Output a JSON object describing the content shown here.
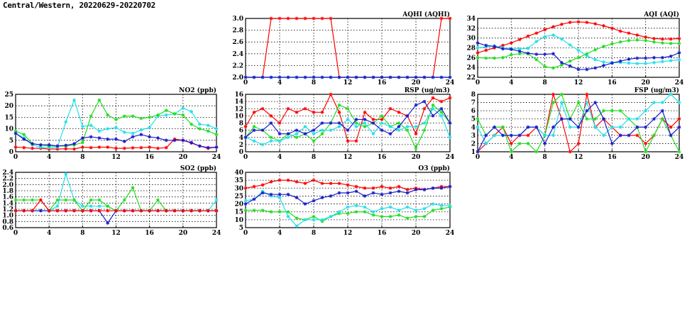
{
  "page": {
    "title": "Central/Western, 20220629-20220702"
  },
  "colors": {
    "red": "#ff0000",
    "green": "#22dd22",
    "blue": "#1a1acc",
    "cyan": "#22e0e8"
  },
  "chart_data": [
    {
      "id": "aqhi",
      "type": "line",
      "title": "AQHI (AQHI)",
      "xlim": [
        0,
        24
      ],
      "xticks": [
        0,
        4,
        8,
        12,
        16,
        20,
        24
      ],
      "ylim": [
        2.0,
        3.0
      ],
      "yticks": [
        "2.0",
        "2.2",
        "2.4",
        "2.6",
        "2.8",
        "3.0"
      ],
      "grid": true,
      "series": [
        {
          "color": "red",
          "values": [
            2,
            2,
            2,
            3,
            3,
            3,
            3,
            3,
            3,
            3,
            3,
            2,
            2,
            2,
            2,
            2,
            2,
            2,
            2,
            2,
            2,
            2,
            2,
            3,
            3
          ]
        },
        {
          "color": "cyan",
          "values": [
            2,
            2,
            2,
            2,
            2,
            2,
            2,
            2,
            2,
            2,
            2,
            2,
            2,
            2,
            2,
            2,
            2,
            2,
            2,
            2,
            2,
            2,
            2,
            2,
            2
          ]
        },
        {
          "color": "blue",
          "values": [
            2,
            2,
            2,
            2,
            2,
            2,
            2,
            2,
            2,
            2,
            2,
            2,
            2,
            2,
            2,
            2,
            2,
            2,
            2,
            2,
            2,
            2,
            2,
            2,
            2
          ]
        }
      ]
    },
    {
      "id": "aqi",
      "type": "line",
      "title": "AQI (AQI)",
      "xlim": [
        0,
        24
      ],
      "xticks": [
        0,
        4,
        8,
        12,
        16,
        20,
        24
      ],
      "ylim": [
        22,
        34
      ],
      "yticks": [
        "22",
        "24",
        "26",
        "28",
        "30",
        "32",
        "34"
      ],
      "grid": true,
      "series": [
        {
          "color": "red",
          "values": [
            27,
            27.5,
            28,
            28.5,
            29,
            29.7,
            30.4,
            31,
            31.7,
            32.3,
            32.8,
            33.2,
            33.3,
            33.2,
            32.9,
            32.5,
            32,
            31.4,
            31,
            30.6,
            30.2,
            29.9,
            29.8,
            29.8,
            29.9
          ]
        },
        {
          "color": "cyan",
          "values": [
            28,
            28.2,
            28.4,
            28,
            27.8,
            27.8,
            27.9,
            29.3,
            30.3,
            30.6,
            29.8,
            28.6,
            27.5,
            26.4,
            25.6,
            25.1,
            25,
            25,
            24.9,
            24.8,
            24.8,
            25,
            25.2,
            25.4,
            25.6
          ]
        },
        {
          "color": "green",
          "values": [
            26,
            25.9,
            25.9,
            26,
            26.6,
            26.8,
            26.8,
            25.6,
            24.2,
            23.9,
            24.5,
            25.3,
            26,
            26.8,
            27.6,
            28.3,
            28.8,
            29.2,
            29.5,
            29.6,
            29.5,
            29.2,
            29,
            28.9,
            28.9
          ]
        },
        {
          "color": "blue",
          "values": [
            29,
            28.5,
            28.3,
            27.8,
            27.7,
            27.3,
            26.9,
            26.7,
            26.7,
            26.8,
            25,
            24.3,
            23.6,
            23.6,
            23.9,
            24.4,
            24.9,
            25.3,
            25.7,
            25.9,
            25.9,
            26,
            26,
            26.3,
            27
          ]
        }
      ]
    },
    {
      "id": "no2",
      "type": "line",
      "title": "NO2 (ppb)",
      "xlim": [
        0,
        24
      ],
      "xticks": [
        0,
        4,
        8,
        12,
        16,
        20,
        24
      ],
      "ylim": [
        0,
        25
      ],
      "yticks": [
        "0",
        "5",
        "10",
        "15",
        "20",
        "25"
      ],
      "grid": true,
      "series": [
        {
          "color": "red",
          "values": [
            2,
            1.8,
            1.5,
            1.5,
            1.2,
            1.2,
            1.3,
            1.2,
            2,
            1.8,
            2,
            2,
            1.5,
            1.5,
            1.7,
            1.8,
            2,
            1.5,
            1.8,
            5.5,
            5,
            3.8,
            2.5,
            1.5,
            2
          ]
        },
        {
          "color": "cyan",
          "values": [
            8,
            6,
            3,
            2,
            1.8,
            2,
            13,
            22.5,
            11,
            11.5,
            9,
            10,
            10.5,
            8.5,
            8,
            9.5,
            10.5,
            15.5,
            16,
            16.5,
            19,
            17.5,
            12,
            11.5,
            10
          ]
        },
        {
          "color": "green",
          "values": [
            9,
            7.5,
            3.5,
            3,
            2.5,
            2.5,
            2.5,
            3,
            4,
            15.5,
            22.5,
            16,
            14,
            15.5,
            15.5,
            14.5,
            15,
            16,
            18,
            16.5,
            16,
            12,
            10,
            9,
            7.5
          ]
        },
        {
          "color": "blue",
          "values": [
            8,
            5.5,
            3.5,
            3,
            3,
            2.5,
            2.8,
            3.5,
            6,
            6.5,
            6,
            5.5,
            5.5,
            4.5,
            6.5,
            7.5,
            6.5,
            6,
            5,
            5,
            5,
            4,
            2.5,
            1.8,
            2
          ]
        }
      ]
    },
    {
      "id": "rsp",
      "type": "line",
      "title": "RSP (ug/m3)",
      "xlim": [
        0,
        24
      ],
      "xticks": [
        0,
        4,
        8,
        12,
        16,
        20,
        24
      ],
      "ylim": [
        0,
        16
      ],
      "yticks": [
        "0",
        "2",
        "4",
        "6",
        "8",
        "10",
        "12",
        "14",
        "16"
      ],
      "grid": true,
      "series": [
        {
          "color": "red",
          "values": [
            7,
            11,
            12,
            10,
            8,
            12,
            11,
            12,
            11,
            11,
            16,
            11,
            3,
            3,
            11,
            9,
            9,
            12,
            11,
            10,
            5,
            12,
            15,
            14,
            15
          ]
        },
        {
          "color": "green",
          "values": [
            4,
            7,
            6,
            4,
            3,
            5,
            4,
            5,
            3,
            5,
            8,
            13,
            12,
            8,
            7,
            8,
            10,
            7,
            8,
            6,
            1,
            6,
            13,
            11,
            8
          ]
        },
        {
          "color": "cyan",
          "values": [
            4,
            3,
            2,
            3,
            3,
            4,
            5,
            7,
            5,
            6,
            6,
            7,
            9,
            7,
            8,
            5,
            8,
            7,
            6,
            7,
            7,
            8,
            12,
            10,
            4
          ]
        },
        {
          "color": "blue",
          "values": [
            4,
            6,
            6,
            8,
            5,
            5,
            6,
            5,
            6,
            8,
            8,
            8,
            6,
            9,
            9,
            8,
            6,
            5,
            7,
            10,
            13,
            14,
            10,
            12,
            8
          ]
        }
      ]
    },
    {
      "id": "fsp",
      "type": "line",
      "title": "FSP (ug/m3)",
      "xlim": [
        0,
        24
      ],
      "xticks": [
        0,
        4,
        8,
        12,
        16,
        20,
        24
      ],
      "ylim": [
        1,
        8
      ],
      "yticks": [
        "1",
        "2",
        "3",
        "4",
        "5",
        "6",
        "7",
        "8"
      ],
      "grid": true,
      "series": [
        {
          "color": "red",
          "values": [
            1,
            2,
            3,
            4,
            2,
            3,
            3,
            4,
            3,
            8,
            5,
            1,
            2,
            8,
            4,
            5,
            4,
            3,
            3,
            3,
            2,
            3,
            5,
            4,
            5
          ]
        },
        {
          "color": "green",
          "values": [
            5,
            3,
            4,
            4,
            1,
            2,
            2,
            1,
            3,
            7,
            8,
            5,
            7,
            5,
            5,
            6,
            6,
            6,
            5,
            4,
            1,
            3,
            5,
            3,
            1
          ]
        },
        {
          "color": "cyan",
          "values": [
            4,
            2,
            3,
            3,
            3,
            3,
            4,
            4,
            3,
            3,
            7,
            4,
            4,
            7,
            4,
            3,
            4,
            4,
            5,
            5,
            6,
            7,
            7,
            8,
            7
          ]
        },
        {
          "color": "blue",
          "values": [
            1,
            3,
            4,
            3,
            3,
            3,
            4,
            4,
            2,
            4,
            5,
            5,
            4,
            6,
            7,
            5,
            2,
            3,
            3,
            4,
            4,
            5,
            6,
            3,
            4
          ]
        }
      ]
    },
    {
      "id": "so2",
      "type": "line",
      "title": "SO2 (ppb)",
      "xlim": [
        0,
        24
      ],
      "xticks": [
        0,
        4,
        8,
        12,
        16,
        20,
        24
      ],
      "ylim": [
        0.6,
        2.4
      ],
      "yticks": [
        "0.6",
        "0.8",
        "1.0",
        "1.2",
        "1.4",
        "1.6",
        "1.8",
        "2.0",
        "2.2",
        "2.4"
      ],
      "grid": true,
      "series": [
        {
          "color": "cyan",
          "values": [
            1.15,
            1.15,
            1.15,
            1.15,
            1.15,
            1.3,
            2.35,
            1.5,
            1.3,
            1.3,
            1.3,
            1.3,
            1.15,
            1.15,
            1.15,
            1.15,
            1.15,
            1.15,
            1.15,
            1.15,
            1.15,
            1.15,
            1.15,
            1.15,
            1.5
          ]
        },
        {
          "color": "green",
          "values": [
            1.5,
            1.5,
            1.5,
            1.5,
            1.15,
            1.5,
            1.5,
            1.5,
            1.15,
            1.5,
            1.5,
            1.3,
            1.15,
            1.5,
            1.9,
            1.15,
            1.15,
            1.5,
            1.15,
            1.15,
            1.15,
            1.15,
            1.15,
            1.15,
            1.15
          ]
        },
        {
          "color": "blue",
          "values": [
            1.15,
            1.15,
            1.15,
            1.15,
            1.15,
            1.15,
            1.15,
            1.15,
            1.15,
            1.15,
            1.15,
            0.75,
            1.15,
            1.15,
            1.15,
            1.15,
            1.15,
            1.15,
            1.15,
            1.15,
            1.15,
            1.15,
            1.15,
            1.15,
            1.15
          ]
        },
        {
          "color": "red",
          "values": [
            1.15,
            1.15,
            1.15,
            1.5,
            1.15,
            1.15,
            1.15,
            1.15,
            1.15,
            1.15,
            1.15,
            1.15,
            1.15,
            1.15,
            1.15,
            1.15,
            1.15,
            1.15,
            1.15,
            1.15,
            1.15,
            1.15,
            1.15,
            1.15,
            1.15
          ]
        }
      ]
    },
    {
      "id": "o3",
      "type": "line",
      "title": "O3 (ppb)",
      "xlim": [
        0,
        24
      ],
      "xticks": [
        0,
        4,
        8,
        12,
        16,
        20,
        24
      ],
      "ylim": [
        5,
        40
      ],
      "yticks": [
        "5",
        "10",
        "15",
        "20",
        "25",
        "30",
        "35",
        "40"
      ],
      "grid": true,
      "series": [
        {
          "color": "red",
          "values": [
            30,
            31,
            32,
            34,
            35,
            35,
            34,
            33,
            35,
            33,
            33,
            33,
            32,
            31,
            30,
            30,
            31,
            30,
            31,
            29,
            30,
            29,
            30,
            31,
            31
          ]
        },
        {
          "color": "green",
          "values": [
            16,
            16,
            16,
            15,
            15,
            15,
            11,
            10,
            12,
            9,
            12,
            14,
            14,
            15,
            15,
            13,
            12,
            12,
            13,
            11,
            12,
            12,
            16,
            17,
            18
          ]
        },
        {
          "color": "cyan",
          "values": [
            22,
            23,
            28,
            25,
            24,
            12,
            6,
            10,
            10,
            10,
            12,
            15,
            18,
            19,
            18,
            15,
            17,
            18,
            16,
            18,
            16,
            17,
            20,
            19,
            19
          ]
        },
        {
          "color": "blue",
          "values": [
            20,
            23,
            27,
            26,
            26,
            26,
            24,
            20,
            22,
            24,
            25,
            27,
            27,
            28,
            25,
            27,
            26,
            27,
            28,
            27,
            29,
            29,
            30,
            30,
            31
          ]
        }
      ]
    }
  ]
}
